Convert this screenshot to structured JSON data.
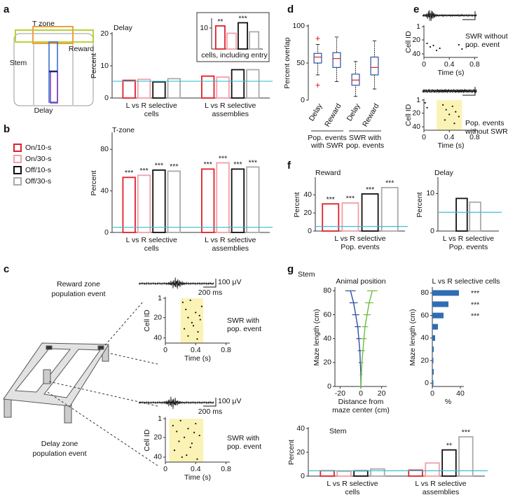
{
  "labels": {
    "panels": [
      "a",
      "b",
      "c",
      "d",
      "e",
      "f",
      "g"
    ],
    "maze": [
      "T zone",
      "Reward",
      "Stem",
      "Delay"
    ],
    "reward_event": [
      "Reward zone",
      "population event"
    ],
    "delay_event": [
      "Delay zone",
      "population event"
    ],
    "stem": "Stem"
  },
  "chart_data": [
    {
      "type": "bar",
      "title": "Delay",
      "ylabel": "Percent",
      "ylim": [
        0,
        20
      ],
      "yticks": [
        0,
        10,
        20
      ],
      "categories": [
        [
          "L vs R selective",
          "cells"
        ],
        [
          "L vs R selective",
          "assemblies"
        ]
      ],
      "series": [
        {
          "color": "#e0202a",
          "values": [
            5.5,
            6.8
          ]
        },
        {
          "color": "#f0a0a8",
          "values": [
            5.8,
            6.5
          ]
        },
        {
          "color": "#111111",
          "values": [
            5.0,
            8.8
          ]
        },
        {
          "color": "#aaaaaa",
          "values": [
            6.0,
            8.8
          ]
        }
      ],
      "chance_level": 5.2,
      "chance_color": "#3cc0d0"
    },
    {
      "type": "bar",
      "xlabel": "cells, including entry",
      "ylim": [
        0,
        14
      ],
      "yticks": [
        10
      ],
      "categories": [
        null
      ],
      "series": [
        {
          "color": "#e0202a",
          "values": [
            11
          ],
          "stars": [
            "**"
          ]
        },
        {
          "color": "#f0a0a8",
          "values": [
            7.5
          ]
        },
        {
          "color": "#111111",
          "values": [
            12.5
          ],
          "stars": [
            "***"
          ]
        },
        {
          "color": "#aaaaaa",
          "values": [
            8.2
          ]
        }
      ]
    },
    {
      "type": "bar",
      "title": "T-zone",
      "ylabel": "Percent",
      "ylim": [
        0,
        95
      ],
      "yticks": [
        0,
        40,
        80
      ],
      "legend": "left",
      "categories": [
        [
          "L vs R selective",
          "cells"
        ],
        [
          "L vs R selective",
          "assemblies"
        ]
      ],
      "series": [
        {
          "name": "On/10-s",
          "color": "#e0202a",
          "values": [
            53,
            61
          ],
          "stars": [
            "***",
            "***"
          ]
        },
        {
          "name": "On/30-s",
          "color": "#f0a0a8",
          "values": [
            55,
            67
          ],
          "stars": [
            "***",
            "***"
          ]
        },
        {
          "name": "Off/10-s",
          "color": "#111111",
          "values": [
            60,
            61
          ],
          "stars": [
            "***",
            "***"
          ]
        },
        {
          "name": "Off/30-s",
          "color": "#aaaaaa",
          "values": [
            59,
            63
          ],
          "stars": [
            "***",
            "***"
          ]
        }
      ],
      "chance_level": 5,
      "chance_color": "#3cc0d0"
    },
    {
      "type": "scatter",
      "xlabel": "Time (s)",
      "ylabel": "Cell ID",
      "xlim": [
        0,
        0.85
      ],
      "xticks": [
        0,
        0.4,
        0.8
      ],
      "ylim": [
        1,
        45
      ],
      "y_inverted": true,
      "yticks": [
        1,
        20,
        40
      ],
      "shade": [
        0.2,
        0.5
      ],
      "shade_color": "#fbf3b5",
      "color": "#111111",
      "x": [
        0.23,
        0.27,
        0.3,
        0.33,
        0.37,
        0.4,
        0.43,
        0.46,
        0.48,
        0.3,
        0.35,
        0.42,
        0.25,
        0.45
      ],
      "y": [
        5,
        12,
        20,
        3,
        28,
        15,
        34,
        22,
        9,
        38,
        25,
        41,
        31,
        18
      ],
      "annotation": [
        "SWR with",
        "pop. event"
      ],
      "scale_labels": [
        "100 μV",
        "200 ms"
      ]
    },
    {
      "type": "scatter",
      "xlabel": "Time (s)",
      "ylabel": "Cell ID",
      "xlim": [
        0,
        0.85
      ],
      "xticks": [
        0,
        0.4,
        0.8
      ],
      "ylim": [
        1,
        45
      ],
      "y_inverted": true,
      "yticks": [
        1,
        20,
        40
      ],
      "shade": [
        0.05,
        0.5
      ],
      "shade_color": "#fbf3b5",
      "color": "#111111",
      "x": [
        0.1,
        0.15,
        0.2,
        0.25,
        0.3,
        0.35,
        0.4,
        0.45,
        0.12,
        0.28,
        0.33,
        0.42,
        0.18,
        0.38,
        0.22
      ],
      "y": [
        8,
        14,
        3,
        20,
        11,
        26,
        6,
        18,
        33,
        38,
        30,
        42,
        24,
        15,
        40
      ],
      "annotation": [
        "SWR with",
        "pop. event"
      ],
      "scale_labels": [
        "100 μV",
        "200 ms"
      ]
    },
    {
      "type": "box",
      "ylabel": "Percent overlap",
      "ylim": [
        0,
        100
      ],
      "yticks": [
        0,
        50,
        100
      ],
      "categories": [
        "Delay",
        "Reward",
        "Delay",
        "Reward"
      ],
      "groups": [
        {
          "label": [
            "Pop. events",
            "with SWR"
          ]
        },
        {
          "label": [
            "SWR with",
            "pop. events"
          ]
        }
      ],
      "whisker_low": [
        34,
        25,
        5,
        15
      ],
      "q1": [
        50,
        44,
        20,
        34
      ],
      "median": [
        58,
        56,
        27,
        44
      ],
      "q3": [
        63,
        64,
        35,
        58
      ],
      "whisker_high": [
        75,
        85,
        52,
        80
      ],
      "outliers": [
        [
          83,
          20
        ],
        [],
        [],
        []
      ],
      "color": "#2d4fa0",
      "median_color": "#e0202a"
    },
    {
      "type": "scatter",
      "xlabel": "Time (s)",
      "ylabel": "Cell ID",
      "xlim": [
        0,
        0.85
      ],
      "xticks": [
        0,
        0.4,
        0.8
      ],
      "ylim": [
        1,
        45
      ],
      "y_inverted": true,
      "yticks": [
        1,
        20,
        40
      ],
      "color": "#111111",
      "x": [
        0.05,
        0.1,
        0.15,
        0.2,
        0.25,
        0.55,
        0.6,
        0.7
      ],
      "y": [
        25,
        30,
        28,
        35,
        32,
        27,
        33,
        29
      ],
      "annotation": [
        "SWR without",
        "pop. event"
      ]
    },
    {
      "type": "scatter",
      "xlabel": "Time (s)",
      "ylabel": "Cell ID",
      "xlim": [
        0,
        0.85
      ],
      "xticks": [
        0,
        0.4,
        0.8
      ],
      "ylim": [
        1,
        45
      ],
      "y_inverted": true,
      "yticks": [
        1,
        20,
        40
      ],
      "shade": [
        0.2,
        0.6
      ],
      "shade_color": "#fbf3b5",
      "color": "#111111",
      "x": [
        0.02,
        0.05,
        0.3,
        0.35,
        0.4,
        0.45,
        0.5,
        0.55,
        0.33,
        0.48
      ],
      "y": [
        5,
        12,
        8,
        15,
        22,
        10,
        18,
        25,
        30,
        35
      ],
      "annotation": [
        "Pop. events",
        "without SWR"
      ]
    },
    {
      "type": "bar",
      "title": "Reward",
      "ylabel": "Percent",
      "ylim": [
        0,
        58
      ],
      "yticks": [
        0,
        20,
        40
      ],
      "categories": [
        [
          "L vs R selective",
          "Pop. events"
        ]
      ],
      "series": [
        {
          "color": "#e0202a",
          "values": [
            30
          ],
          "stars": [
            "***"
          ]
        },
        {
          "color": "#f0a0a8",
          "values": [
            31
          ],
          "stars": [
            "***"
          ]
        },
        {
          "color": "#111111",
          "values": [
            41
          ],
          "stars": [
            "***"
          ]
        },
        {
          "color": "#aaaaaa",
          "values": [
            48
          ],
          "stars": [
            "***"
          ]
        }
      ],
      "chance_level": 5,
      "chance_color": "#3cc0d0"
    },
    {
      "type": "bar",
      "title": "Delay",
      "ylabel": "Percent",
      "ylim": [
        0,
        14
      ],
      "yticks": [
        0,
        10
      ],
      "categories": [
        [
          "L vs R selective",
          "Pop. events"
        ]
      ],
      "series": [
        {
          "color": "#111111",
          "values": [
            8.7
          ]
        },
        {
          "color": "#aaaaaa",
          "values": [
            7.7
          ]
        }
      ],
      "chance_level": 5,
      "chance_color": "#3cc0d0"
    },
    {
      "type": "line",
      "title": "Animal position",
      "xlabel": [
        "Distance from",
        "maze center (cm)"
      ],
      "ylabel": "Maze length (cm)",
      "xlim": [
        -25,
        25
      ],
      "xticks": [
        -20,
        0,
        20
      ],
      "ylim": [
        0,
        82
      ],
      "yticks": [
        0,
        20,
        40,
        60,
        80
      ],
      "y": [
        0,
        10,
        20,
        30,
        40,
        50,
        60,
        70,
        80
      ],
      "series": [
        {
          "color": "#2d4fa0",
          "values": [
            0,
            0,
            -0.5,
            -1,
            -2,
            -3,
            -5,
            -7,
            -10
          ],
          "xerr": [
            1,
            1,
            1.5,
            2,
            2.5,
            3,
            3.5,
            4,
            5
          ]
        },
        {
          "color": "#6dbb3c",
          "values": [
            0,
            0.5,
            1,
            2,
            3,
            4,
            6,
            8,
            11
          ],
          "xerr": [
            1,
            1,
            1.5,
            2,
            2.5,
            3,
            3.5,
            4,
            5
          ]
        }
      ]
    },
    {
      "type": "hbar",
      "title": "L vs R selective cells",
      "xlabel": "%",
      "ylabel": "Maze length (cm)",
      "xlim": [
        0,
        45
      ],
      "xticks": [
        0,
        40
      ],
      "ylim": [
        -3,
        84
      ],
      "yticks": [
        0,
        20,
        40,
        60,
        80
      ],
      "color": "#2f6db5",
      "y": [
        0,
        10,
        20,
        30,
        40,
        50,
        60,
        70,
        80
      ],
      "values": [
        1.5,
        2,
        1.5,
        2,
        4,
        8,
        16,
        23,
        38
      ],
      "stars": [
        null,
        null,
        null,
        null,
        null,
        null,
        "***",
        "***",
        "***"
      ]
    },
    {
      "type": "bar",
      "title": "Stem",
      "ylabel": "Percent",
      "ylim": [
        0,
        40
      ],
      "yticks": [
        0,
        20,
        40
      ],
      "categories": [
        [
          "L vs R selective",
          "cells"
        ],
        [
          "L vs R selective",
          "assemblies"
        ]
      ],
      "series": [
        {
          "color": "#e0202a",
          "values": [
            4.5,
            5
          ]
        },
        {
          "color": "#f0a0a8",
          "values": [
            4,
            11
          ]
        },
        {
          "color": "#111111",
          "values": [
            4.5,
            22
          ],
          "stars": [
            null,
            "**"
          ]
        },
        {
          "color": "#aaaaaa",
          "values": [
            6,
            33
          ],
          "stars": [
            null,
            "***"
          ]
        }
      ],
      "chance_level": 4.5,
      "chance_color": "#3cc0d0"
    }
  ]
}
